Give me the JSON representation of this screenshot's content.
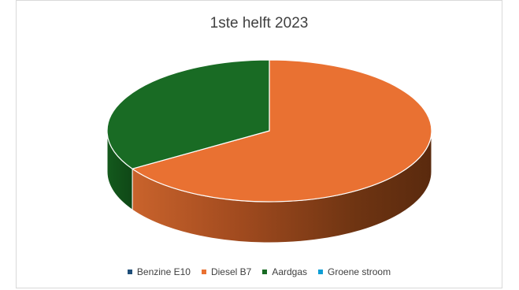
{
  "chart_data": {
    "type": "pie",
    "title": "1ste helft 2023",
    "categories": [
      "Benzine E10",
      "Diesel B7",
      "Aardgas",
      "Groene stroom"
    ],
    "values": [
      0,
      66,
      34,
      0
    ],
    "colors": [
      "#1f4e79",
      "#e97132",
      "#196b24",
      "#0f9ed5"
    ],
    "legend_position": "bottom",
    "style": "3d"
  }
}
